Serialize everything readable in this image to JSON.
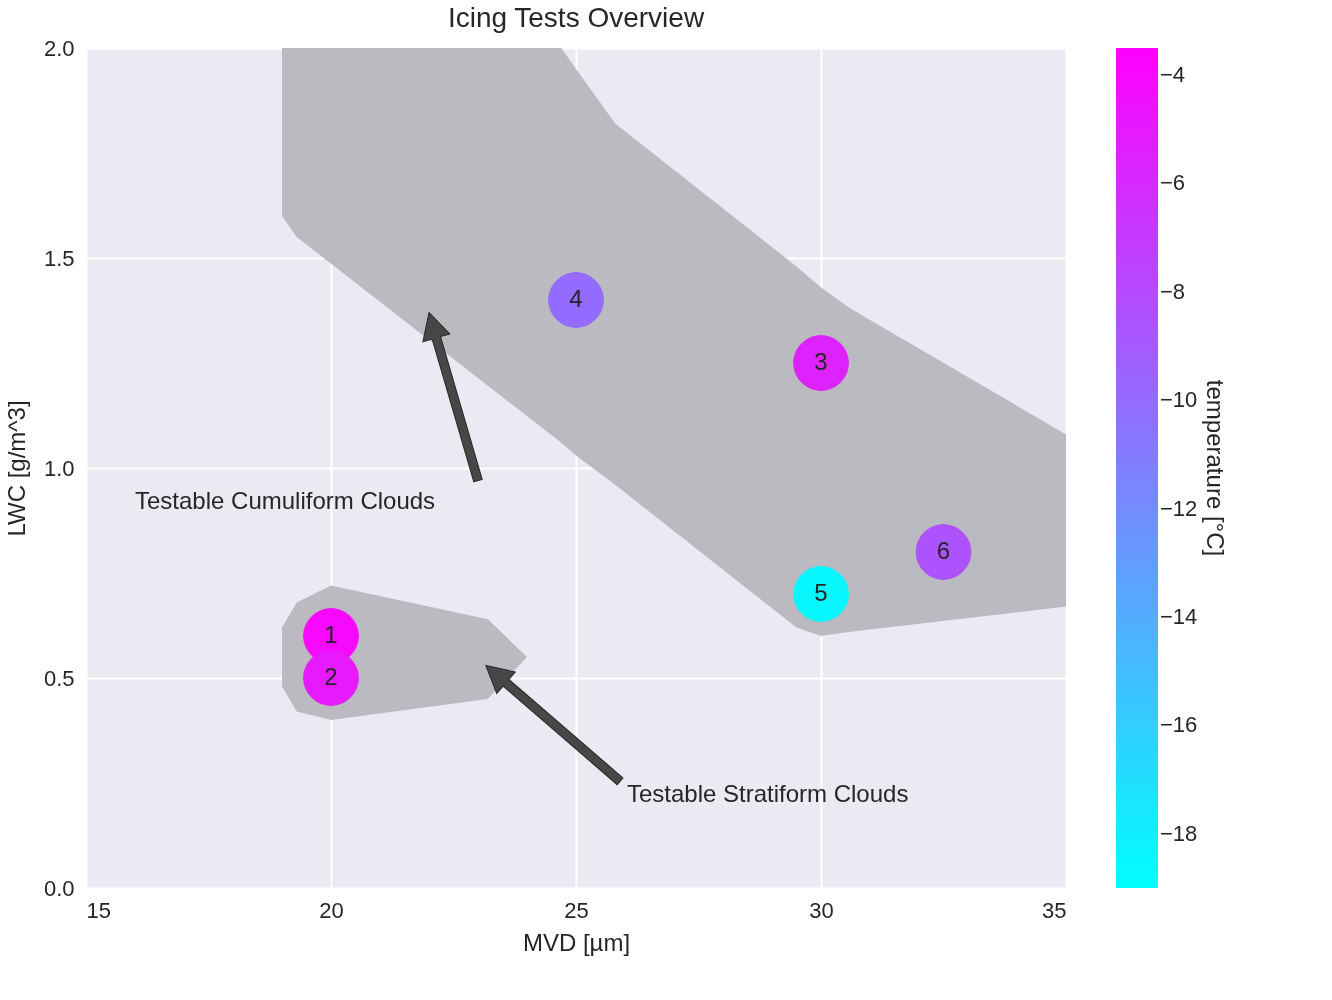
{
  "chart_data": {
    "type": "scatter",
    "title": "Icing Tests Overview",
    "xlabel": "MVD [µm]",
    "ylabel": "LWC [g/m^3]",
    "clabel": "temperature [°C]",
    "xlim": [
      15,
      35
    ],
    "xticks": [
      15,
      20,
      25,
      30,
      35
    ],
    "ylim": [
      0,
      2.0
    ],
    "yticks": [
      {
        "value": 0,
        "label": "0.0"
      },
      {
        "value": 0.5,
        "label": "0.5"
      },
      {
        "value": 1.0,
        "label": "1.0"
      },
      {
        "value": 1.5,
        "label": "1.5"
      },
      {
        "value": 2.0,
        "label": "2.0"
      }
    ],
    "clim": [
      -19,
      -3.5
    ],
    "cticks": [
      {
        "value": -4,
        "label": "−4"
      },
      {
        "value": -6,
        "label": "−6"
      },
      {
        "value": -8,
        "label": "−8"
      },
      {
        "value": -10,
        "label": "−10"
      },
      {
        "value": -12,
        "label": "−12"
      },
      {
        "value": -14,
        "label": "−14"
      },
      {
        "value": -16,
        "label": "−16"
      },
      {
        "value": -18,
        "label": "−18"
      }
    ],
    "grid": true,
    "series": [
      {
        "type": "line",
        "color": "#bbbac0",
        "x": [
          19,
          19.3,
          24.7,
          25.0,
          25.8,
          29.5,
          30.0,
          30.6,
          35
        ],
        "values": [
          null,
          null,
          null,
          null,
          null,
          null,
          null,
          null,
          null
        ],
        "upper": [
          2.0,
          2.0,
          2.0,
          1.95,
          1.82,
          1.48,
          1.43,
          1.38,
          1.08
        ],
        "lower": [
          1.6,
          1.55,
          1.06,
          1.03,
          0.96,
          0.62,
          0.6,
          0.61,
          0.67
        ]
      },
      {
        "type": "line",
        "color": "#bbbac0",
        "x": [
          19,
          19.3,
          20,
          23.2,
          24.0
        ],
        "values": [
          null,
          null,
          null,
          null,
          null
        ],
        "upper": [
          0.62,
          0.68,
          0.72,
          0.64,
          0.55
        ],
        "lower": [
          0.48,
          0.42,
          0.4,
          0.45,
          0.55
        ]
      },
      {
        "marker": "circle",
        "x": [
          20,
          20,
          30,
          25,
          30,
          32.5
        ],
        "values": [
          0.6,
          0.5,
          1.25,
          1.4,
          0.7,
          0.8
        ],
        "cvalues": [
          -4,
          -5,
          -5.5,
          -10,
          -18.5,
          -8.5
        ],
        "colors": [
          "#f708ff",
          "#e619ff",
          "#de21ff",
          "#946bff",
          "#08f7ff",
          "#ad52ff"
        ]
      }
    ],
    "annotations": [
      "Testable Cumuliform Clouds",
      "Testable Stratiform Clouds",
      {
        "text": "1",
        "x": 20,
        "y": 0.6
      },
      {
        "text": "2",
        "x": 20,
        "y": 0.5
      },
      {
        "text": "3",
        "x": 30,
        "y": 1.25
      },
      {
        "text": "4",
        "x": 25,
        "y": 1.4
      },
      {
        "text": "5",
        "x": 30,
        "y": 0.7
      },
      {
        "text": "6",
        "x": 32.5,
        "y": 0.8
      }
    ]
  }
}
